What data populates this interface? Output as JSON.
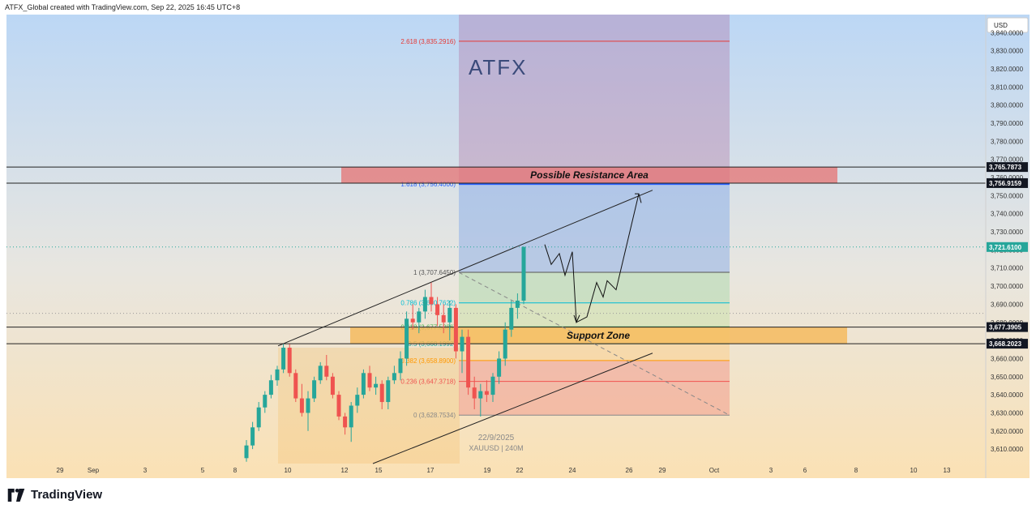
{
  "header": {
    "attribution": "ATFX_Global created with TradingView.com, Sep 22, 2025 16:45 UTC+8"
  },
  "footer": {
    "brand": "TradingView",
    "logo_icon": "tradingview-logo-icon"
  },
  "watermark": {
    "brand": "ATFX"
  },
  "colors": {
    "bg_top": "#bcd7f5",
    "bg_bottom": "#fbe1b4",
    "up_candle": "#26a69a",
    "down_candle": "#ef5350",
    "resistance_zone": "#e57373",
    "support_zone": "#f5b858",
    "fib_red": "#e53935",
    "fib_blue": "#2962ff",
    "fib_cyan": "#00bcd4",
    "fib_orange": "#ff9800",
    "price_tag_dark": "#131722"
  },
  "chart_data": {
    "type": "candlestick",
    "symbol": "XAUUSD",
    "interval": "240M",
    "date_label": "22/9/2025",
    "currency": "USD",
    "ylim": [
      3602,
      3850
    ],
    "y_ticks": [
      "3,610.0000",
      "3,620.0000",
      "3,630.0000",
      "3,640.0000",
      "3,650.0000",
      "3,660.0000",
      "3,670.0000",
      "3,680.0000",
      "3,690.0000",
      "3,700.0000",
      "3,710.0000",
      "3,720.0000",
      "3,730.0000",
      "3,740.0000",
      "3,750.0000",
      "3,760.0000",
      "3,770.0000",
      "3,780.0000",
      "3,790.0000",
      "3,800.0000",
      "3,810.0000",
      "3,820.0000",
      "3,830.0000",
      "3,840.0000"
    ],
    "x_ticks": [
      "29",
      "Sep",
      "3",
      "5",
      "8",
      "10",
      "12",
      "15",
      "17",
      "19",
      "22",
      "24",
      "26",
      "29",
      "Oct",
      "3",
      "6",
      "8",
      "10",
      "13"
    ],
    "price_tags": {
      "resistance_top": "3,765.7873",
      "resistance_bottom": "3,756.9159",
      "last_price": "3,721.6100",
      "support_top": "3,677.3905",
      "support_bottom": "3,668.2023"
    },
    "zones": {
      "resistance": {
        "label": "Possible Resistance Area",
        "from": 3756.9159,
        "to": 3765.7873
      },
      "support": {
        "label": "Support Zone",
        "from": 3668.2023,
        "to": 3677.3905
      }
    },
    "fibonacci": [
      {
        "label": "2.618 (3,835.2916)",
        "value": 3835.2916
      },
      {
        "label": "1.618 (3,756.4000)",
        "value": 3756.4
      },
      {
        "label": "1 (3,707.6450)",
        "value": 3707.645
      },
      {
        "label": "0.786 (3,690.7622)",
        "value": 3690.7622
      },
      {
        "label": "0.618 (3,677.5386)",
        "value": 3677.5386
      },
      {
        "label": "0.5 (3,668.1992)",
        "value": 3668.1992
      },
      {
        "label": "0.382 (3,658.8900)",
        "value": 3658.89
      },
      {
        "label": "0.236 (3,647.3718)",
        "value": 3647.3718
      },
      {
        "label": "0 (3,628.7534)",
        "value": 3628.7534
      }
    ],
    "candles": [
      [
        3605,
        3615,
        3603,
        3612
      ],
      [
        3612,
        3625,
        3610,
        3622
      ],
      [
        3622,
        3636,
        3620,
        3633
      ],
      [
        3633,
        3642,
        3630,
        3640
      ],
      [
        3640,
        3651,
        3638,
        3648
      ],
      [
        3648,
        3656,
        3645,
        3654
      ],
      [
        3654,
        3668,
        3652,
        3666
      ],
      [
        3666,
        3668,
        3650,
        3652
      ],
      [
        3652,
        3654,
        3636,
        3638
      ],
      [
        3638,
        3646,
        3628,
        3630
      ],
      [
        3630,
        3642,
        3620,
        3638
      ],
      [
        3638,
        3650,
        3636,
        3648
      ],
      [
        3648,
        3658,
        3646,
        3656
      ],
      [
        3656,
        3662,
        3648,
        3650
      ],
      [
        3650,
        3652,
        3638,
        3640
      ],
      [
        3640,
        3642,
        3626,
        3628
      ],
      [
        3628,
        3630,
        3618,
        3622
      ],
      [
        3622,
        3636,
        3614,
        3634
      ],
      [
        3634,
        3644,
        3630,
        3640
      ],
      [
        3640,
        3654,
        3638,
        3652
      ],
      [
        3652,
        3656,
        3642,
        3644
      ],
      [
        3644,
        3650,
        3640,
        3646
      ],
      [
        3646,
        3648,
        3632,
        3636
      ],
      [
        3636,
        3650,
        3632,
        3648
      ],
      [
        3648,
        3656,
        3646,
        3652
      ],
      [
        3652,
        3664,
        3648,
        3660
      ],
      [
        3660,
        3686,
        3656,
        3682
      ],
      [
        3682,
        3690,
        3676,
        3680
      ],
      [
        3680,
        3688,
        3674,
        3686
      ],
      [
        3686,
        3698,
        3682,
        3694
      ],
      [
        3694,
        3702,
        3686,
        3690
      ],
      [
        3690,
        3694,
        3678,
        3684
      ],
      [
        3684,
        3690,
        3674,
        3680
      ],
      [
        3680,
        3692,
        3670,
        3688
      ],
      [
        3688,
        3690,
        3660,
        3664
      ],
      [
        3664,
        3676,
        3652,
        3672
      ],
      [
        3672,
        3676,
        3640,
        3644
      ],
      [
        3644,
        3650,
        3632,
        3638
      ],
      [
        3638,
        3646,
        3628,
        3642
      ],
      [
        3642,
        3648,
        3636,
        3640
      ],
      [
        3640,
        3652,
        3636,
        3650
      ],
      [
        3650,
        3664,
        3646,
        3660
      ],
      [
        3660,
        3680,
        3656,
        3676
      ],
      [
        3676,
        3692,
        3672,
        3688
      ],
      [
        3688,
        3696,
        3682,
        3692
      ],
      [
        3692,
        3722,
        3690,
        3721.61
      ]
    ]
  }
}
